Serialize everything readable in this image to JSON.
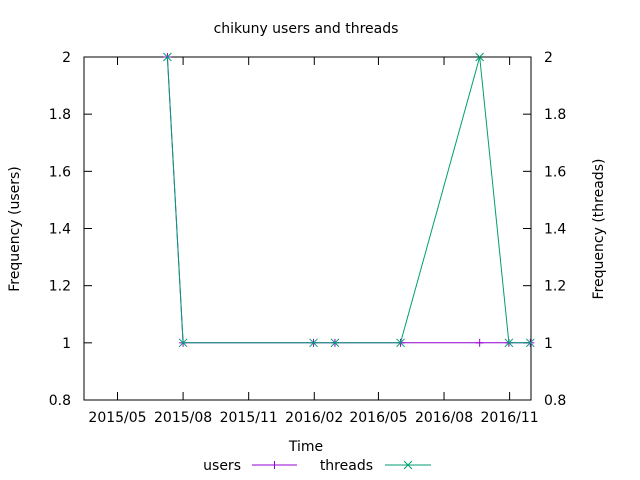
{
  "chart_data": {
    "type": "line",
    "title": "chikuny users and threads",
    "xlabel": "Time",
    "ylabel": "Frequency (users)",
    "y2label": "Frequency (threads)",
    "x_ticks": [
      "2015/05",
      "2015/08",
      "2015/11",
      "2016/02",
      "2016/05",
      "2016/08",
      "2016/11"
    ],
    "xlim": [
      "2015-03-15",
      "2016-12-01"
    ],
    "ylim": [
      0.8,
      2
    ],
    "y_ticks": [
      "0.8",
      "1",
      "1.2",
      "1.4",
      "1.6",
      "1.8",
      "2"
    ],
    "y2lim": [
      0.8,
      2
    ],
    "y2_ticks": [
      "0.8",
      "1",
      "1.2",
      "1.4",
      "1.6",
      "1.8",
      "2"
    ],
    "grid": false,
    "legend": "bottom-center",
    "series": [
      {
        "name": "users",
        "color": "#9400d3",
        "marker": "plus",
        "axis": "left",
        "points": [
          {
            "x": "2015-07-10",
            "y": 2
          },
          {
            "x": "2015-08-01",
            "y": 1
          },
          {
            "x": "2016-01-31",
            "y": 1
          },
          {
            "x": "2016-03-01",
            "y": 1
          },
          {
            "x": "2016-06-01",
            "y": 1
          },
          {
            "x": "2016-09-20",
            "y": 1
          },
          {
            "x": "2016-10-31",
            "y": 1
          },
          {
            "x": "2016-11-30",
            "y": 1
          }
        ]
      },
      {
        "name": "threads",
        "color": "#009e73",
        "marker": "cross",
        "axis": "right",
        "points": [
          {
            "x": "2015-07-10",
            "y": 2
          },
          {
            "x": "2015-08-01",
            "y": 1
          },
          {
            "x": "2016-01-31",
            "y": 1
          },
          {
            "x": "2016-03-01",
            "y": 1
          },
          {
            "x": "2016-06-01",
            "y": 1
          },
          {
            "x": "2016-09-20",
            "y": 2
          },
          {
            "x": "2016-10-31",
            "y": 1
          },
          {
            "x": "2016-11-30",
            "y": 1
          }
        ]
      }
    ]
  }
}
